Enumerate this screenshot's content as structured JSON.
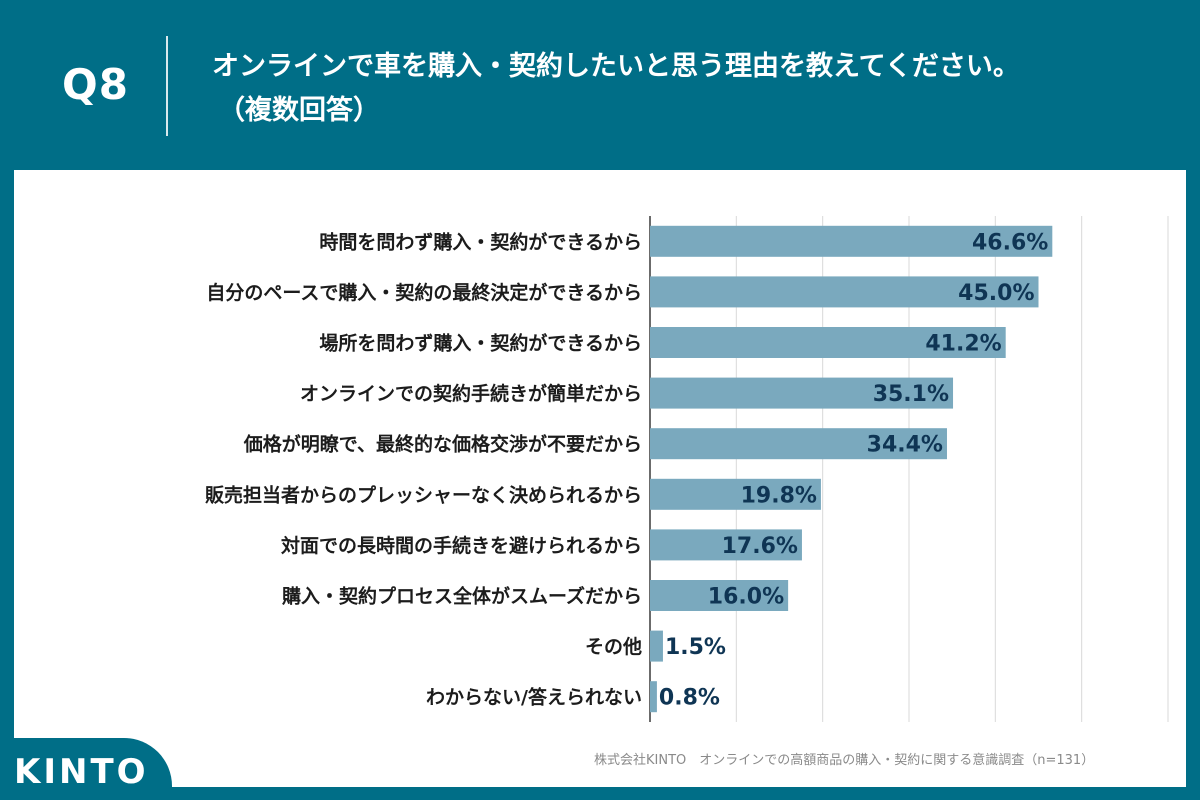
{
  "header": {
    "question_label": "Q8",
    "title_line1": "オンラインで車を購入・契約したいと思う理由を教えてください。",
    "title_line2": "（複数回答）"
  },
  "footer": {
    "source": "株式会社KINTO　オンラインでの高額商品の購入・契約に関する意識調査（n=131）"
  },
  "logo": {
    "text": "KINTO"
  },
  "colors": {
    "background": "#006e87",
    "bar": "#7aa9be",
    "label_text": "#1c1c1c",
    "value_text": "#0f3554",
    "grid": "#d9d9d9"
  },
  "chart_data": {
    "type": "bar",
    "orientation": "horizontal",
    "title": "オンラインで車を購入・契約したいと思う理由を教えてください。（複数回答）",
    "xlabel": "",
    "ylabel": "",
    "xlim": [
      0,
      60
    ],
    "grid": true,
    "categories": [
      "時間を問わず購入・契約ができるから",
      "自分のペースで購入・契約の最終決定ができるから",
      "場所を問わず購入・契約ができるから",
      "オンラインでの契約手続きが簡単だから",
      "価格が明瞭で、最終的な価格交渉が不要だから",
      "販売担当者からのプレッシャーなく決められるから",
      "対面での長時間の手続きを避けられるから",
      "購入・契約プロセス全体がスムーズだから",
      "その他",
      "わからない/答えられない"
    ],
    "values": [
      46.6,
      45.0,
      41.2,
      35.1,
      34.4,
      19.8,
      17.6,
      16.0,
      1.5,
      0.8
    ],
    "value_labels": [
      "46.6%",
      "45.0%",
      "41.2%",
      "35.1%",
      "34.4%",
      "19.8%",
      "17.6%",
      "16.0%",
      "1.5%",
      "0.8%"
    ]
  }
}
